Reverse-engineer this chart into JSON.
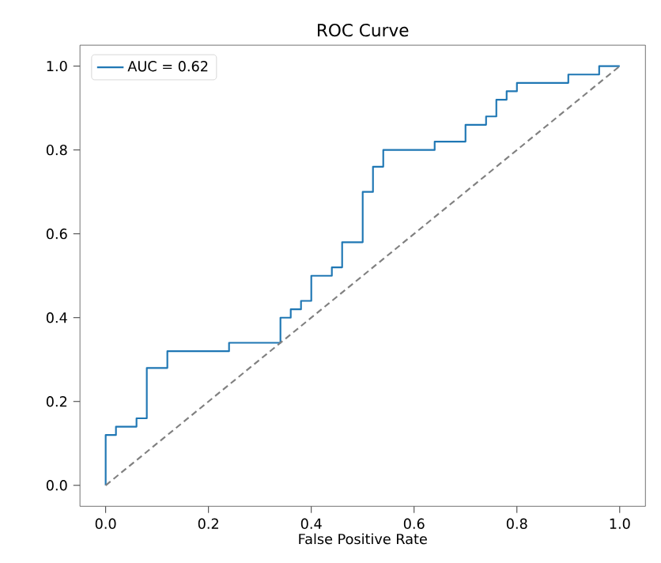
{
  "chart_data": {
    "type": "line",
    "title": "ROC Curve",
    "xlabel": "False Positive Rate",
    "series": [
      {
        "name": "AUC = 0.62",
        "color": "#1f77b4",
        "line_style": "solid",
        "x": [
          0,
          0,
          0.02,
          0.02,
          0.06,
          0.06,
          0.08,
          0.08,
          0.12,
          0.12,
          0.24,
          0.24,
          0.34,
          0.34,
          0.36,
          0.36,
          0.38,
          0.38,
          0.4,
          0.4,
          0.44,
          0.44,
          0.46,
          0.46,
          0.5,
          0.5,
          0.52,
          0.52,
          0.54,
          0.54,
          0.64,
          0.64,
          0.7,
          0.7,
          0.74,
          0.74,
          0.76,
          0.76,
          0.78,
          0.78,
          0.8,
          0.8,
          0.9,
          0.9,
          0.96,
          0.96,
          1.0
        ],
        "values": [
          0,
          0.12,
          0.12,
          0.14,
          0.14,
          0.16,
          0.16,
          0.28,
          0.28,
          0.32,
          0.32,
          0.34,
          0.34,
          0.4,
          0.4,
          0.42,
          0.42,
          0.44,
          0.44,
          0.5,
          0.5,
          0.52,
          0.52,
          0.58,
          0.58,
          0.7,
          0.7,
          0.76,
          0.76,
          0.8,
          0.8,
          0.82,
          0.82,
          0.86,
          0.86,
          0.88,
          0.88,
          0.92,
          0.92,
          0.94,
          0.94,
          0.96,
          0.96,
          0.98,
          0.98,
          1.0,
          1.0
        ]
      },
      {
        "color": "#808080",
        "line_style": "dashed",
        "x": [
          0,
          1
        ],
        "values": [
          0,
          1
        ]
      }
    ],
    "xlim": [
      -0.05,
      1.05
    ],
    "ylim": [
      -0.05,
      1.05
    ],
    "xticks": [
      {
        "value": 0,
        "label": "0.0"
      },
      0.2,
      0.4,
      0.6,
      0.8,
      {
        "value": 1,
        "label": "1.0"
      }
    ],
    "yticks": [
      {
        "value": 0,
        "label": "0.0"
      },
      0.2,
      0.4,
      0.6,
      0.8,
      {
        "value": 1,
        "label": "1.0"
      }
    ],
    "grid": false,
    "legend": "top left"
  }
}
